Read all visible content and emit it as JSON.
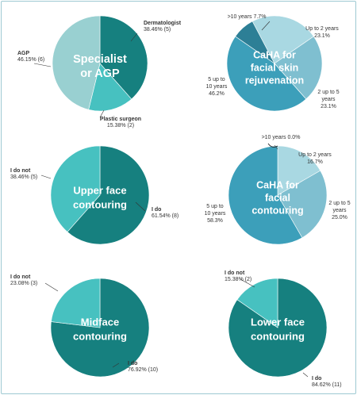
{
  "chart_data": [
    {
      "type": "pie",
      "title": "Specialist or AGP",
      "slices": [
        {
          "label": "Dermatologist",
          "value": 38.46,
          "value_text": "38.46% (5)",
          "color": "#16807f"
        },
        {
          "label": "Plastic surgeon",
          "value": 15.38,
          "value_text": "15.38% (2)",
          "color": "#47c1c0"
        },
        {
          "label": "AGP",
          "value": 46.15,
          "value_text": "46.15% (6)",
          "color": "#99d0d1"
        }
      ]
    },
    {
      "type": "pie",
      "title": "CaHA for facial skin rejuvenation",
      "slices": [
        {
          "label": "Up to 2 years",
          "value": 23.1,
          "value_text": "23.1%",
          "color": "#a9d8e2"
        },
        {
          "label": "2 up to 5 years",
          "value": 23.1,
          "value_text": "23.1%",
          "color": "#7fbfd0"
        },
        {
          "label": "5 up to 10 years",
          "value": 46.2,
          "value_text": "46.2%",
          "color": "#3c9fba"
        },
        {
          "label": ">10 years",
          "value": 7.7,
          "value_text": "7.7%",
          "color": "#2d7f96"
        }
      ]
    },
    {
      "type": "pie",
      "title": "Upper face contouring",
      "slices": [
        {
          "label": "I do",
          "value": 61.54,
          "value_text": "61.54% (8)",
          "color": "#16807f"
        },
        {
          "label": "I do not",
          "value": 38.46,
          "value_text": "38.46% (5)",
          "color": "#47c1c0"
        }
      ]
    },
    {
      "type": "pie",
      "title": "CaHA for facial contouring",
      "slices": [
        {
          "label": "Up to 2 years",
          "value": 16.7,
          "value_text": "16.7%",
          "color": "#a9d8e2"
        },
        {
          "label": "2 up to 5 years",
          "value": 25.0,
          "value_text": "25.0%",
          "color": "#7fbfd0"
        },
        {
          "label": "5 up to 10 years",
          "value": 58.3,
          "value_text": "58.3%",
          "color": "#3c9fba"
        },
        {
          "label": ">10 years",
          "value": 0.0,
          "value_text": "0.0%",
          "color": "#2d7f96"
        }
      ]
    },
    {
      "type": "pie",
      "title": "Midface contouring",
      "slices": [
        {
          "label": "I do",
          "value": 76.92,
          "value_text": "76.92% (10)",
          "color": "#16807f"
        },
        {
          "label": "I do not",
          "value": 23.08,
          "value_text": "23.08% (3)",
          "color": "#47c1c0"
        }
      ]
    },
    {
      "type": "pie",
      "title": "Lower face contouring",
      "slices": [
        {
          "label": "I do",
          "value": 84.62,
          "value_text": "84.62% (11)",
          "color": "#16807f"
        },
        {
          "label": "I do not",
          "value": 15.38,
          "value_text": "15.38% (2)",
          "color": "#47c1c0"
        }
      ]
    }
  ]
}
